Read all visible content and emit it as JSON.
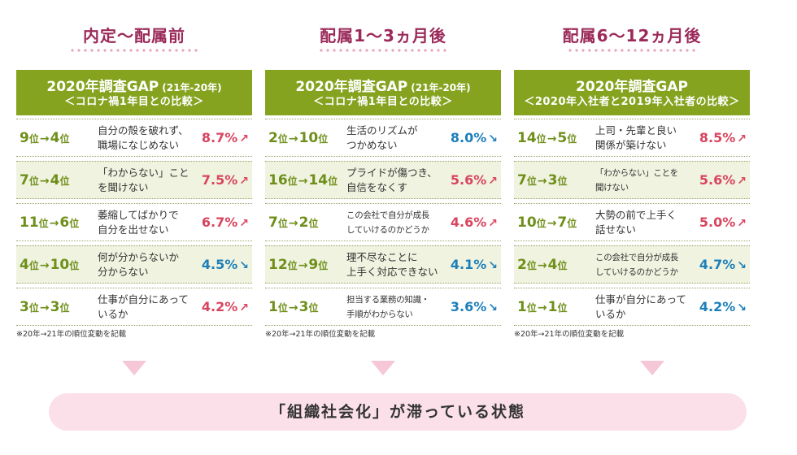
{
  "columns": [
    {
      "phase_title": "内定〜配属前",
      "header_title": "2020年調査GAP",
      "header_sub": "(21年-20年)",
      "header_line2": "＜コロナ禍1年目との比較＞",
      "rows": [
        {
          "from": "9",
          "to": "4",
          "desc": [
            "自分の殻を破れず、",
            "職場になじめない"
          ],
          "pct": "8.7%",
          "trend": "up"
        },
        {
          "from": "7",
          "to": "4",
          "desc": [
            "「わからない」こと",
            "を聞けない"
          ],
          "pct": "7.5%",
          "trend": "up"
        },
        {
          "from": "11",
          "to": "6",
          "desc": [
            "萎縮してばかりで",
            "自分を出せない"
          ],
          "pct": "6.7%",
          "trend": "up"
        },
        {
          "from": "4",
          "to": "10",
          "desc": [
            "何が分からないか",
            "分からない"
          ],
          "pct": "4.5%",
          "trend": "down"
        },
        {
          "from": "3",
          "to": "3",
          "desc": [
            "仕事が自分にあって",
            "いるか"
          ],
          "pct": "4.2%",
          "trend": "up"
        }
      ],
      "footnote": "※20年→21年の順位変動を記載"
    },
    {
      "phase_title": "配属1〜3ヵ月後",
      "header_title": "2020年調査GAP",
      "header_sub": "(21年-20年)",
      "header_line2": "＜コロナ禍1年目との比較＞",
      "rows": [
        {
          "from": "2",
          "to": "10",
          "desc": [
            "生活のリズムが",
            "つかめない"
          ],
          "pct": "8.0%",
          "trend": "down"
        },
        {
          "from": "16",
          "to": "14",
          "desc": [
            "プライドが傷つき、",
            "自信をなくす"
          ],
          "pct": "5.6%",
          "trend": "up"
        },
        {
          "from": "7",
          "to": "2",
          "desc": [
            "この会社で自分が成長",
            "していけるのかどうか"
          ],
          "pct": "4.6%",
          "trend": "up"
        },
        {
          "from": "12",
          "to": "9",
          "desc": [
            "理不尽なことに",
            "上手く対応できない"
          ],
          "pct": "4.1%",
          "trend": "down"
        },
        {
          "from": "1",
          "to": "3",
          "desc": [
            "担当する業務の知識・",
            "手順がわからない"
          ],
          "pct": "3.6%",
          "trend": "down"
        }
      ],
      "footnote": "※20年→21年の順位変動を記載"
    },
    {
      "phase_title": "配属6〜12ヵ月後",
      "header_title": "2020年調査GAP",
      "header_sub": "",
      "header_line2": "＜2020年入社者と2019年入社者の比較＞",
      "rows": [
        {
          "from": "14",
          "to": "5",
          "desc": [
            "上司・先輩と良い",
            "関係が築けない"
          ],
          "pct": "8.5%",
          "trend": "up"
        },
        {
          "from": "7",
          "to": "3",
          "desc": [
            "「わからない」ことを",
            "聞けない"
          ],
          "pct": "5.6%",
          "trend": "up"
        },
        {
          "from": "10",
          "to": "7",
          "desc": [
            "大勢の前で上手く",
            "話せない"
          ],
          "pct": "5.0%",
          "trend": "up"
        },
        {
          "from": "2",
          "to": "4",
          "desc": [
            "この会社で自分が成長",
            "していけるのかどうか"
          ],
          "pct": "4.7%",
          "trend": "down"
        },
        {
          "from": "1",
          "to": "1",
          "desc": [
            "仕事が自分にあって",
            "いるか"
          ],
          "pct": "4.2%",
          "trend": "down"
        }
      ],
      "footnote": "※20年→21年の順位変動を記載"
    }
  ],
  "labels": {
    "rank_suffix": "位",
    "rank_arrow": "→",
    "arrow_up": "↗",
    "arrow_down": "↘"
  },
  "banner_text": "「組織社会化」が滞っている状態",
  "colors": {
    "phase_title": "#9b2a5a",
    "header_bg": "#85a31f",
    "rank": "#6f8f1a",
    "up": "#d9455f",
    "down": "#1d7fba",
    "row_shade": "#eff3df",
    "banner_bg": "#fbe0ea",
    "triangle": "#f6c7d7"
  }
}
